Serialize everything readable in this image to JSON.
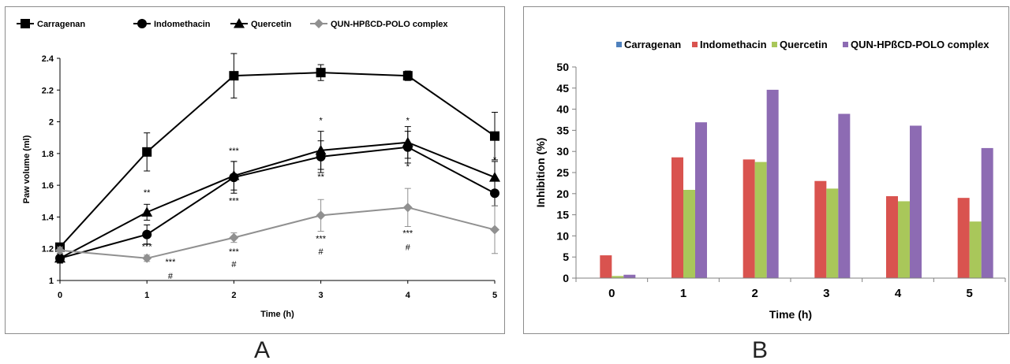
{
  "panel_a_label": "A",
  "panel_b_label": "B",
  "chart_data": [
    {
      "type": "line",
      "title": "",
      "xlabel": "Time (h)",
      "ylabel": "Paw volume (ml)",
      "x": [
        0,
        1,
        2,
        3,
        4,
        5
      ],
      "xlim": [
        0,
        5
      ],
      "ylim": [
        1,
        2.4
      ],
      "yticks": [
        "1",
        "1.2",
        "1.4",
        "1.6",
        "1.8",
        "2",
        "2.2",
        "2.4"
      ],
      "xticks": [
        "0",
        "1",
        "2",
        "3",
        "4",
        "5"
      ],
      "grid": false,
      "legend_position": "top",
      "series": [
        {
          "name": "Carragenan",
          "marker": "square",
          "color": "#000000",
          "values": [
            1.21,
            1.81,
            2.29,
            2.31,
            2.29,
            1.91
          ],
          "errors": [
            0.02,
            0.12,
            0.14,
            0.05,
            0.03,
            0.15
          ]
        },
        {
          "name": "Indomethacin",
          "marker": "circle",
          "color": "#000000",
          "values": [
            1.14,
            1.29,
            1.65,
            1.78,
            1.84,
            1.55
          ],
          "errors": [
            0.03,
            0.06,
            0.1,
            0.1,
            0.1,
            0.08
          ]
        },
        {
          "name": "Quercetin",
          "marker": "triangle",
          "color": "#000000",
          "values": [
            1.14,
            1.43,
            1.66,
            1.82,
            1.87,
            1.65
          ],
          "errors": [
            0.03,
            0.05,
            0.09,
            0.12,
            0.1,
            0.1
          ]
        },
        {
          "name": "QUN-HPßCD-POLO complex",
          "marker": "diamond",
          "color": "#909090",
          "values": [
            1.19,
            1.14,
            1.27,
            1.41,
            1.46,
            1.32
          ],
          "errors": [
            0.02,
            0.02,
            0.03,
            0.1,
            0.12,
            0.15
          ]
        }
      ],
      "annotations": [
        {
          "x": 1,
          "y": 1.535,
          "text": "**"
        },
        {
          "x": 1,
          "y": 1.195,
          "text": "***"
        },
        {
          "x": 1.27,
          "y": 1.1,
          "text": "***"
        },
        {
          "x": 1.27,
          "y": 1.01,
          "text": "#"
        },
        {
          "x": 2,
          "y": 1.8,
          "text": "***"
        },
        {
          "x": 2,
          "y": 1.485,
          "text": "***"
        },
        {
          "x": 2,
          "y": 1.165,
          "text": "***"
        },
        {
          "x": 2,
          "y": 1.085,
          "text": "#"
        },
        {
          "x": 3,
          "y": 1.99,
          "text": "*"
        },
        {
          "x": 3,
          "y": 1.635,
          "text": "**"
        },
        {
          "x": 3,
          "y": 1.245,
          "text": "***"
        },
        {
          "x": 3,
          "y": 1.165,
          "text": "#"
        },
        {
          "x": 4,
          "y": 1.99,
          "text": "*"
        },
        {
          "x": 4,
          "y": 1.7,
          "text": "*"
        },
        {
          "x": 4,
          "y": 1.28,
          "text": "***"
        },
        {
          "x": 4,
          "y": 1.19,
          "text": "#"
        },
        {
          "x": 5,
          "y": 1.745,
          "text": "*"
        }
      ]
    },
    {
      "type": "bar",
      "title": "",
      "xlabel": "Time (h)",
      "ylabel": "Inhibition (%)",
      "categories": [
        "0",
        "1",
        "2",
        "3",
        "4",
        "5"
      ],
      "ylim": [
        0,
        50
      ],
      "yticks": [
        "0",
        "5",
        "10",
        "15",
        "20",
        "25",
        "30",
        "35",
        "40",
        "45",
        "50"
      ],
      "grid": false,
      "legend_position": "top",
      "series": [
        {
          "name": "Carragenan",
          "color": "#4f81bd",
          "values": [
            0,
            0,
            0,
            0,
            0,
            0
          ]
        },
        {
          "name": "Indomethacin",
          "color": "#d9534f",
          "values": [
            5.4,
            28.6,
            28.1,
            23.0,
            19.4,
            19.0
          ]
        },
        {
          "name": "Quercetin",
          "color": "#a9c75a",
          "values": [
            0.5,
            20.9,
            27.5,
            21.2,
            18.2,
            13.4
          ]
        },
        {
          "name": "QUN-HPßCD-POLO complex",
          "color": "#8d6bb3",
          "values": [
            0.8,
            36.9,
            44.6,
            38.9,
            36.1,
            30.8
          ]
        }
      ]
    }
  ]
}
